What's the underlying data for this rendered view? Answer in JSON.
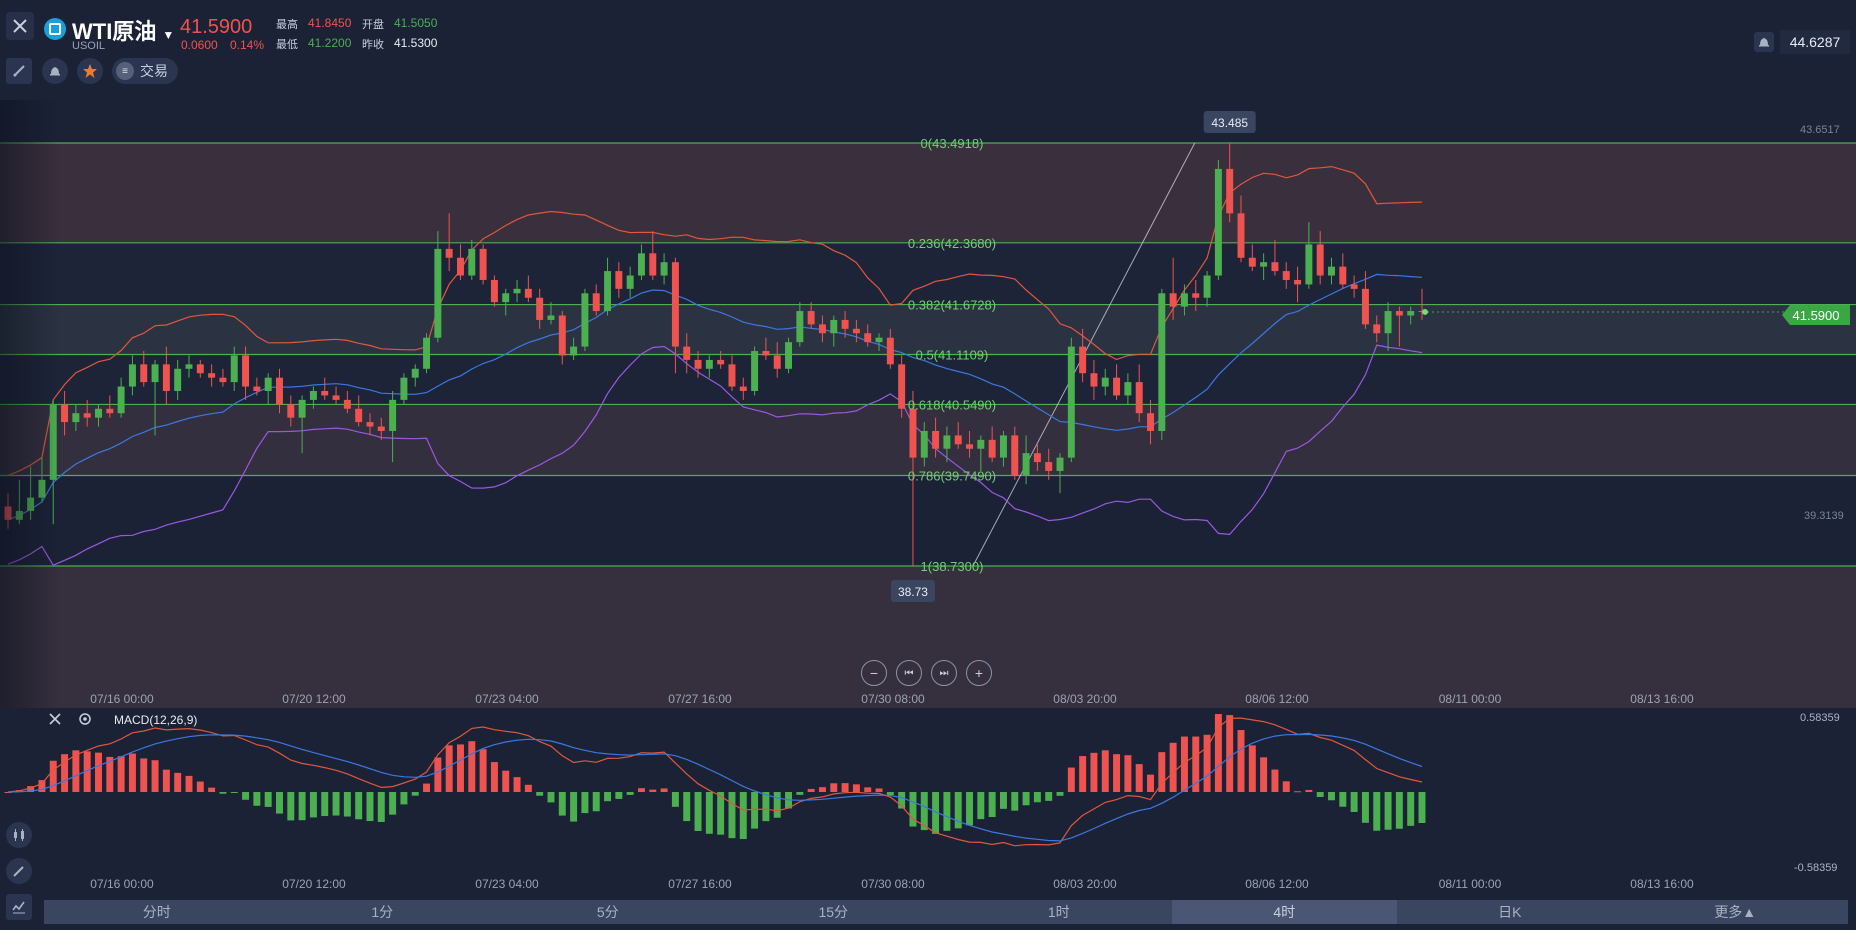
{
  "header": {
    "symbol_name": "WTI原油",
    "symbol_code": "USOIL",
    "price": "41.5900",
    "change": "0.0600",
    "change_pct": "0.14%",
    "quotes": [
      {
        "label": "最高",
        "value": "41.8450",
        "color": "red"
      },
      {
        "label": "开盘",
        "value": "41.5050",
        "color": "green"
      },
      {
        "label": "最低",
        "value": "41.2200",
        "color": "green"
      },
      {
        "label": "昨收",
        "value": "41.5300",
        "color": "white"
      }
    ],
    "trade_label": "交易",
    "top_right_value": "44.6287"
  },
  "chart_data": {
    "type": "candlestick",
    "fibonacci": [
      {
        "label": "0(43.4918)",
        "price": 43.4918
      },
      {
        "label": "0.236(42.3680)",
        "price": 42.368
      },
      {
        "label": "0.382(41.6728)",
        "price": 41.6728
      },
      {
        "label": "0.5(41.1109)",
        "price": 41.1109
      },
      {
        "label": "0.618(40.5490)",
        "price": 40.549
      },
      {
        "label": "0.786(39.7490)",
        "price": 39.749
      },
      {
        "label": "1(38.7300)",
        "price": 38.73
      }
    ],
    "high_marker": "43.485",
    "low_marker": "38.73",
    "right_axis_top": "43.6517",
    "right_axis_mid": "39.3139",
    "current_price_label": "41.5900",
    "x_tick_labels": [
      "07/16 00:00",
      "07/20 12:00",
      "07/23 04:00",
      "07/27 16:00",
      "07/30 08:00",
      "08/03 20:00",
      "08/06 12:00",
      "08/11 00:00",
      "08/13 16:00"
    ],
    "candles": [
      {
        "o": 39.4,
        "h": 39.55,
        "l": 39.15,
        "c": 39.25
      },
      {
        "o": 39.25,
        "h": 39.7,
        "l": 39.2,
        "c": 39.35
      },
      {
        "o": 39.35,
        "h": 39.85,
        "l": 39.25,
        "c": 39.5
      },
      {
        "o": 39.5,
        "h": 39.95,
        "l": 39.45,
        "c": 39.7
      },
      {
        "o": 39.7,
        "h": 40.6,
        "l": 39.2,
        "c": 40.55
      },
      {
        "o": 40.55,
        "h": 40.7,
        "l": 40.2,
        "c": 40.35
      },
      {
        "o": 40.35,
        "h": 40.55,
        "l": 40.25,
        "c": 40.45
      },
      {
        "o": 40.45,
        "h": 40.6,
        "l": 40.3,
        "c": 40.4
      },
      {
        "o": 40.4,
        "h": 40.55,
        "l": 40.3,
        "c": 40.5
      },
      {
        "o": 40.5,
        "h": 40.65,
        "l": 40.4,
        "c": 40.45
      },
      {
        "o": 40.45,
        "h": 40.85,
        "l": 40.4,
        "c": 40.75
      },
      {
        "o": 40.75,
        "h": 41.1,
        "l": 40.65,
        "c": 41.0
      },
      {
        "o": 41.0,
        "h": 41.15,
        "l": 40.75,
        "c": 40.8
      },
      {
        "o": 40.8,
        "h": 41.05,
        "l": 40.2,
        "c": 41.0
      },
      {
        "o": 41.0,
        "h": 41.2,
        "l": 40.55,
        "c": 40.7
      },
      {
        "o": 40.7,
        "h": 41.05,
        "l": 40.6,
        "c": 40.95
      },
      {
        "o": 40.95,
        "h": 41.1,
        "l": 40.85,
        "c": 41.0
      },
      {
        "o": 41.0,
        "h": 41.05,
        "l": 40.85,
        "c": 40.9
      },
      {
        "o": 40.9,
        "h": 41.0,
        "l": 40.75,
        "c": 40.85
      },
      {
        "o": 40.85,
        "h": 40.95,
        "l": 40.75,
        "c": 40.8
      },
      {
        "o": 40.8,
        "h": 41.2,
        "l": 40.7,
        "c": 41.1
      },
      {
        "o": 41.1,
        "h": 41.2,
        "l": 40.6,
        "c": 40.75
      },
      {
        "o": 40.75,
        "h": 40.85,
        "l": 40.65,
        "c": 40.7
      },
      {
        "o": 40.7,
        "h": 40.9,
        "l": 40.55,
        "c": 40.85
      },
      {
        "o": 40.85,
        "h": 40.95,
        "l": 40.45,
        "c": 40.55
      },
      {
        "o": 40.55,
        "h": 40.65,
        "l": 40.3,
        "c": 40.4
      },
      {
        "o": 40.4,
        "h": 40.65,
        "l": 40.0,
        "c": 40.6
      },
      {
        "o": 40.6,
        "h": 40.75,
        "l": 40.5,
        "c": 40.7
      },
      {
        "o": 40.7,
        "h": 40.85,
        "l": 40.6,
        "c": 40.65
      },
      {
        "o": 40.65,
        "h": 40.75,
        "l": 40.55,
        "c": 40.6
      },
      {
        "o": 40.6,
        "h": 40.7,
        "l": 40.45,
        "c": 40.5
      },
      {
        "o": 40.5,
        "h": 40.65,
        "l": 40.3,
        "c": 40.35
      },
      {
        "o": 40.35,
        "h": 40.45,
        "l": 40.2,
        "c": 40.3
      },
      {
        "o": 40.3,
        "h": 40.4,
        "l": 40.15,
        "c": 40.25
      },
      {
        "o": 40.25,
        "h": 40.7,
        "l": 39.9,
        "c": 40.6
      },
      {
        "o": 40.6,
        "h": 40.9,
        "l": 40.55,
        "c": 40.85
      },
      {
        "o": 40.85,
        "h": 41.0,
        "l": 40.75,
        "c": 40.95
      },
      {
        "o": 40.95,
        "h": 41.35,
        "l": 40.9,
        "c": 41.3
      },
      {
        "o": 41.3,
        "h": 42.5,
        "l": 41.25,
        "c": 42.3
      },
      {
        "o": 42.3,
        "h": 42.7,
        "l": 42.05,
        "c": 42.2
      },
      {
        "o": 42.2,
        "h": 42.35,
        "l": 41.95,
        "c": 42.0
      },
      {
        "o": 42.0,
        "h": 42.4,
        "l": 41.95,
        "c": 42.3
      },
      {
        "o": 42.3,
        "h": 42.35,
        "l": 41.9,
        "c": 41.95
      },
      {
        "o": 41.95,
        "h": 42.0,
        "l": 41.65,
        "c": 41.7
      },
      {
        "o": 41.7,
        "h": 41.85,
        "l": 41.55,
        "c": 41.8
      },
      {
        "o": 41.8,
        "h": 41.95,
        "l": 41.7,
        "c": 41.85
      },
      {
        "o": 41.85,
        "h": 42.0,
        "l": 41.7,
        "c": 41.75
      },
      {
        "o": 41.75,
        "h": 41.85,
        "l": 41.4,
        "c": 41.5
      },
      {
        "o": 41.5,
        "h": 41.7,
        "l": 41.45,
        "c": 41.55
      },
      {
        "o": 41.55,
        "h": 41.6,
        "l": 41.0,
        "c": 41.1
      },
      {
        "o": 41.1,
        "h": 41.3,
        "l": 41.05,
        "c": 41.2
      },
      {
        "o": 41.2,
        "h": 41.85,
        "l": 41.15,
        "c": 41.8
      },
      {
        "o": 41.8,
        "h": 41.9,
        "l": 41.55,
        "c": 41.6
      },
      {
        "o": 41.6,
        "h": 42.2,
        "l": 41.55,
        "c": 42.05
      },
      {
        "o": 42.05,
        "h": 42.15,
        "l": 41.75,
        "c": 41.85
      },
      {
        "o": 41.85,
        "h": 42.1,
        "l": 41.75,
        "c": 42.0
      },
      {
        "o": 42.0,
        "h": 42.35,
        "l": 41.95,
        "c": 42.25
      },
      {
        "o": 42.25,
        "h": 42.5,
        "l": 41.95,
        "c": 42.0
      },
      {
        "o": 42.0,
        "h": 42.25,
        "l": 41.9,
        "c": 42.15
      },
      {
        "o": 42.15,
        "h": 42.2,
        "l": 40.9,
        "c": 41.2
      },
      {
        "o": 41.2,
        "h": 41.35,
        "l": 40.9,
        "c": 41.05
      },
      {
        "o": 41.05,
        "h": 41.15,
        "l": 40.85,
        "c": 40.95
      },
      {
        "o": 40.95,
        "h": 41.1,
        "l": 40.85,
        "c": 41.05
      },
      {
        "o": 41.05,
        "h": 41.15,
        "l": 40.95,
        "c": 41.0
      },
      {
        "o": 41.0,
        "h": 41.1,
        "l": 40.7,
        "c": 40.75
      },
      {
        "o": 40.75,
        "h": 40.85,
        "l": 40.6,
        "c": 40.7
      },
      {
        "o": 40.7,
        "h": 41.2,
        "l": 40.65,
        "c": 41.15
      },
      {
        "o": 41.15,
        "h": 41.3,
        "l": 41.05,
        "c": 41.1
      },
      {
        "o": 41.1,
        "h": 41.25,
        "l": 40.85,
        "c": 40.95
      },
      {
        "o": 40.95,
        "h": 41.3,
        "l": 40.9,
        "c": 41.25
      },
      {
        "o": 41.25,
        "h": 41.7,
        "l": 41.2,
        "c": 41.6
      },
      {
        "o": 41.6,
        "h": 41.7,
        "l": 41.4,
        "c": 41.45
      },
      {
        "o": 41.45,
        "h": 41.55,
        "l": 41.25,
        "c": 41.35
      },
      {
        "o": 41.35,
        "h": 41.55,
        "l": 41.2,
        "c": 41.5
      },
      {
        "o": 41.5,
        "h": 41.6,
        "l": 41.3,
        "c": 41.4
      },
      {
        "o": 41.4,
        "h": 41.5,
        "l": 41.25,
        "c": 41.35
      },
      {
        "o": 41.35,
        "h": 41.45,
        "l": 41.2,
        "c": 41.25
      },
      {
        "o": 41.25,
        "h": 41.35,
        "l": 41.15,
        "c": 41.3
      },
      {
        "o": 41.3,
        "h": 41.4,
        "l": 40.95,
        "c": 41.0
      },
      {
        "o": 41.0,
        "h": 41.1,
        "l": 40.4,
        "c": 40.5
      },
      {
        "o": 40.5,
        "h": 40.7,
        "l": 38.73,
        "c": 39.95
      },
      {
        "o": 39.95,
        "h": 40.35,
        "l": 39.85,
        "c": 40.25
      },
      {
        "o": 40.25,
        "h": 40.4,
        "l": 39.95,
        "c": 40.05
      },
      {
        "o": 40.05,
        "h": 40.3,
        "l": 39.9,
        "c": 40.2
      },
      {
        "o": 40.2,
        "h": 40.35,
        "l": 40.05,
        "c": 40.1
      },
      {
        "o": 40.1,
        "h": 40.25,
        "l": 39.95,
        "c": 40.05
      },
      {
        "o": 40.05,
        "h": 40.2,
        "l": 39.8,
        "c": 40.15
      },
      {
        "o": 40.15,
        "h": 40.3,
        "l": 39.9,
        "c": 39.95
      },
      {
        "o": 39.95,
        "h": 40.25,
        "l": 39.85,
        "c": 40.2
      },
      {
        "o": 40.2,
        "h": 40.3,
        "l": 39.7,
        "c": 39.75
      },
      {
        "o": 39.75,
        "h": 40.2,
        "l": 39.65,
        "c": 40.0
      },
      {
        "o": 40.0,
        "h": 40.1,
        "l": 39.8,
        "c": 39.9
      },
      {
        "o": 39.9,
        "h": 40.05,
        "l": 39.7,
        "c": 39.8
      },
      {
        "o": 39.8,
        "h": 40.0,
        "l": 39.55,
        "c": 39.95
      },
      {
        "o": 39.95,
        "h": 41.3,
        "l": 39.9,
        "c": 41.2
      },
      {
        "o": 41.2,
        "h": 41.4,
        "l": 40.8,
        "c": 40.9
      },
      {
        "o": 40.9,
        "h": 41.05,
        "l": 40.6,
        "c": 40.75
      },
      {
        "o": 40.75,
        "h": 40.95,
        "l": 40.65,
        "c": 40.85
      },
      {
        "o": 40.85,
        "h": 41.0,
        "l": 40.6,
        "c": 40.65
      },
      {
        "o": 40.65,
        "h": 40.9,
        "l": 40.55,
        "c": 40.8
      },
      {
        "o": 40.8,
        "h": 41.0,
        "l": 40.35,
        "c": 40.45
      },
      {
        "o": 40.45,
        "h": 40.6,
        "l": 40.1,
        "c": 40.25
      },
      {
        "o": 40.25,
        "h": 41.85,
        "l": 40.15,
        "c": 41.8
      },
      {
        "o": 41.8,
        "h": 42.2,
        "l": 41.5,
        "c": 41.65
      },
      {
        "o": 41.65,
        "h": 41.9,
        "l": 41.55,
        "c": 41.8
      },
      {
        "o": 41.8,
        "h": 41.95,
        "l": 41.6,
        "c": 41.75
      },
      {
        "o": 41.75,
        "h": 42.05,
        "l": 41.65,
        "c": 42.0
      },
      {
        "o": 42.0,
        "h": 43.3,
        "l": 41.95,
        "c": 43.2
      },
      {
        "o": 43.2,
        "h": 43.485,
        "l": 42.6,
        "c": 42.7
      },
      {
        "o": 42.7,
        "h": 42.9,
        "l": 42.15,
        "c": 42.2
      },
      {
        "o": 42.2,
        "h": 42.35,
        "l": 42.05,
        "c": 42.1
      },
      {
        "o": 42.1,
        "h": 42.25,
        "l": 41.95,
        "c": 42.15
      },
      {
        "o": 42.15,
        "h": 42.4,
        "l": 42.0,
        "c": 42.05
      },
      {
        "o": 42.05,
        "h": 42.15,
        "l": 41.85,
        "c": 41.95
      },
      {
        "o": 41.95,
        "h": 42.1,
        "l": 41.7,
        "c": 41.9
      },
      {
        "o": 41.9,
        "h": 42.6,
        "l": 41.85,
        "c": 42.35
      },
      {
        "o": 42.35,
        "h": 42.5,
        "l": 41.9,
        "c": 42.0
      },
      {
        "o": 42.0,
        "h": 42.2,
        "l": 41.9,
        "c": 42.1
      },
      {
        "o": 42.1,
        "h": 42.25,
        "l": 41.85,
        "c": 41.9
      },
      {
        "o": 41.9,
        "h": 42.0,
        "l": 41.75,
        "c": 41.85
      },
      {
        "o": 41.85,
        "h": 42.05,
        "l": 41.4,
        "c": 41.45
      },
      {
        "o": 41.45,
        "h": 41.55,
        "l": 41.25,
        "c": 41.35
      },
      {
        "o": 41.35,
        "h": 41.7,
        "l": 41.15,
        "c": 41.6
      },
      {
        "o": 41.6,
        "h": 41.65,
        "l": 41.2,
        "c": 41.55
      },
      {
        "o": 41.55,
        "h": 41.65,
        "l": 41.45,
        "c": 41.6
      },
      {
        "o": 41.6,
        "h": 41.85,
        "l": 41.5,
        "c": 41.59
      }
    ],
    "macd": {
      "label": "MACD(12,26,9)",
      "axis_top": "0.58359",
      "axis_bottom": "-0.58359",
      "range": [
        -0.58359,
        0.58359
      ]
    }
  },
  "controls": {
    "zoom_out": "−",
    "back": "⏮",
    "forward": "⏭",
    "zoom_in": "+"
  },
  "timeframes": [
    {
      "label": "分时",
      "active": false
    },
    {
      "label": "1分",
      "active": false
    },
    {
      "label": "5分",
      "active": false
    },
    {
      "label": "15分",
      "active": false
    },
    {
      "label": "1时",
      "active": false
    },
    {
      "label": "4时",
      "active": true
    },
    {
      "label": "日K",
      "active": false
    },
    {
      "label": "更多▲",
      "active": false
    }
  ],
  "colors": {
    "up": "#4caf50",
    "down": "#ef5350",
    "fib_line": "#4caf50",
    "upper_band": "#e0573b",
    "mid_band": "#3a78e0",
    "lower_band": "#9a58e0"
  }
}
